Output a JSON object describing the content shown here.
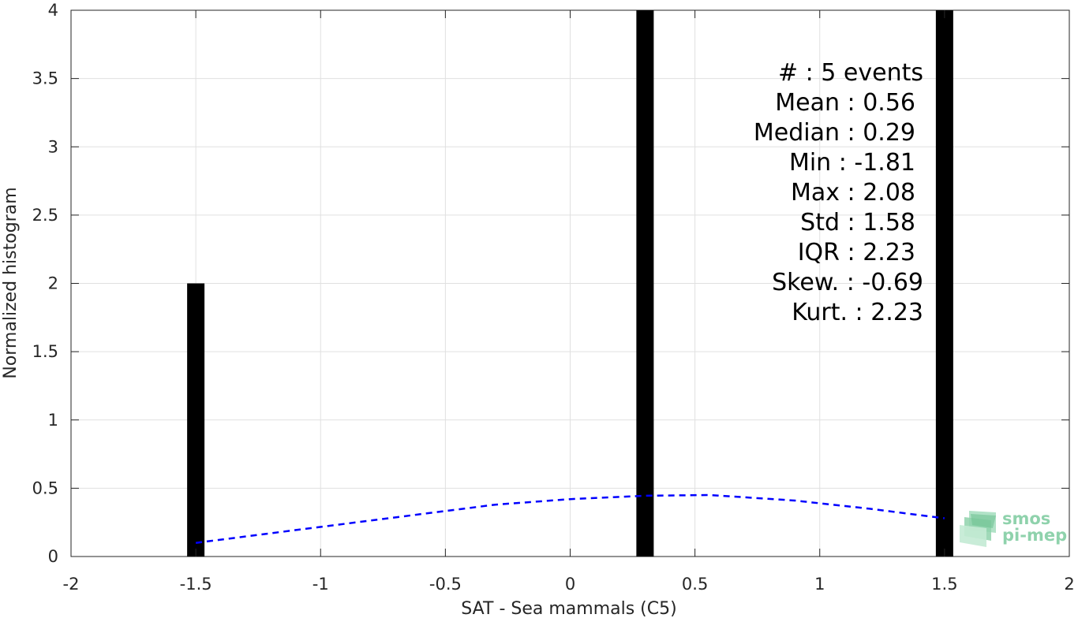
{
  "chart_data": {
    "type": "bar",
    "xlabel": "SAT - Sea mammals (C5)",
    "ylabel": "Normalized histogram",
    "xlim": [
      -2,
      2
    ],
    "ylim": [
      0,
      4
    ],
    "xticks": [
      "-2",
      "-1.5",
      "-1",
      "-0.5",
      "0",
      "0.5",
      "1",
      "1.5",
      "2"
    ],
    "yticks": [
      "0",
      "0.5",
      "1",
      "1.5",
      "2",
      "2.5",
      "3",
      "3.5",
      "4"
    ],
    "grid": true,
    "bars": [
      {
        "x": -1.5,
        "value": 2
      },
      {
        "x": 0.3,
        "value": 4
      },
      {
        "x": 1.5,
        "value": 4
      }
    ],
    "fit_curve": {
      "style": "dashed",
      "color": "#0000ff",
      "x": [
        -1.5,
        -1.2,
        -0.9,
        -0.6,
        -0.3,
        0.0,
        0.3,
        0.56,
        0.9,
        1.2,
        1.5
      ],
      "y": [
        0.1,
        0.17,
        0.24,
        0.31,
        0.38,
        0.42,
        0.445,
        0.45,
        0.41,
        0.35,
        0.28
      ]
    },
    "stats_lines": [
      "#  : 5 events",
      "Mean : 0.56",
      "Median : 0.29",
      "Min : -1.81",
      "Max : 2.08",
      "Std : 1.58",
      "IQR : 2.23",
      "Skew. : -0.69",
      "Kurt. : 2.23"
    ]
  },
  "logo": {
    "line1": "smos",
    "line2": "pi-mep"
  },
  "colors": {
    "bar": "#000000",
    "grid": "#e0e0e0",
    "fit": "#0000ff",
    "logo": "#8fd2ac"
  }
}
